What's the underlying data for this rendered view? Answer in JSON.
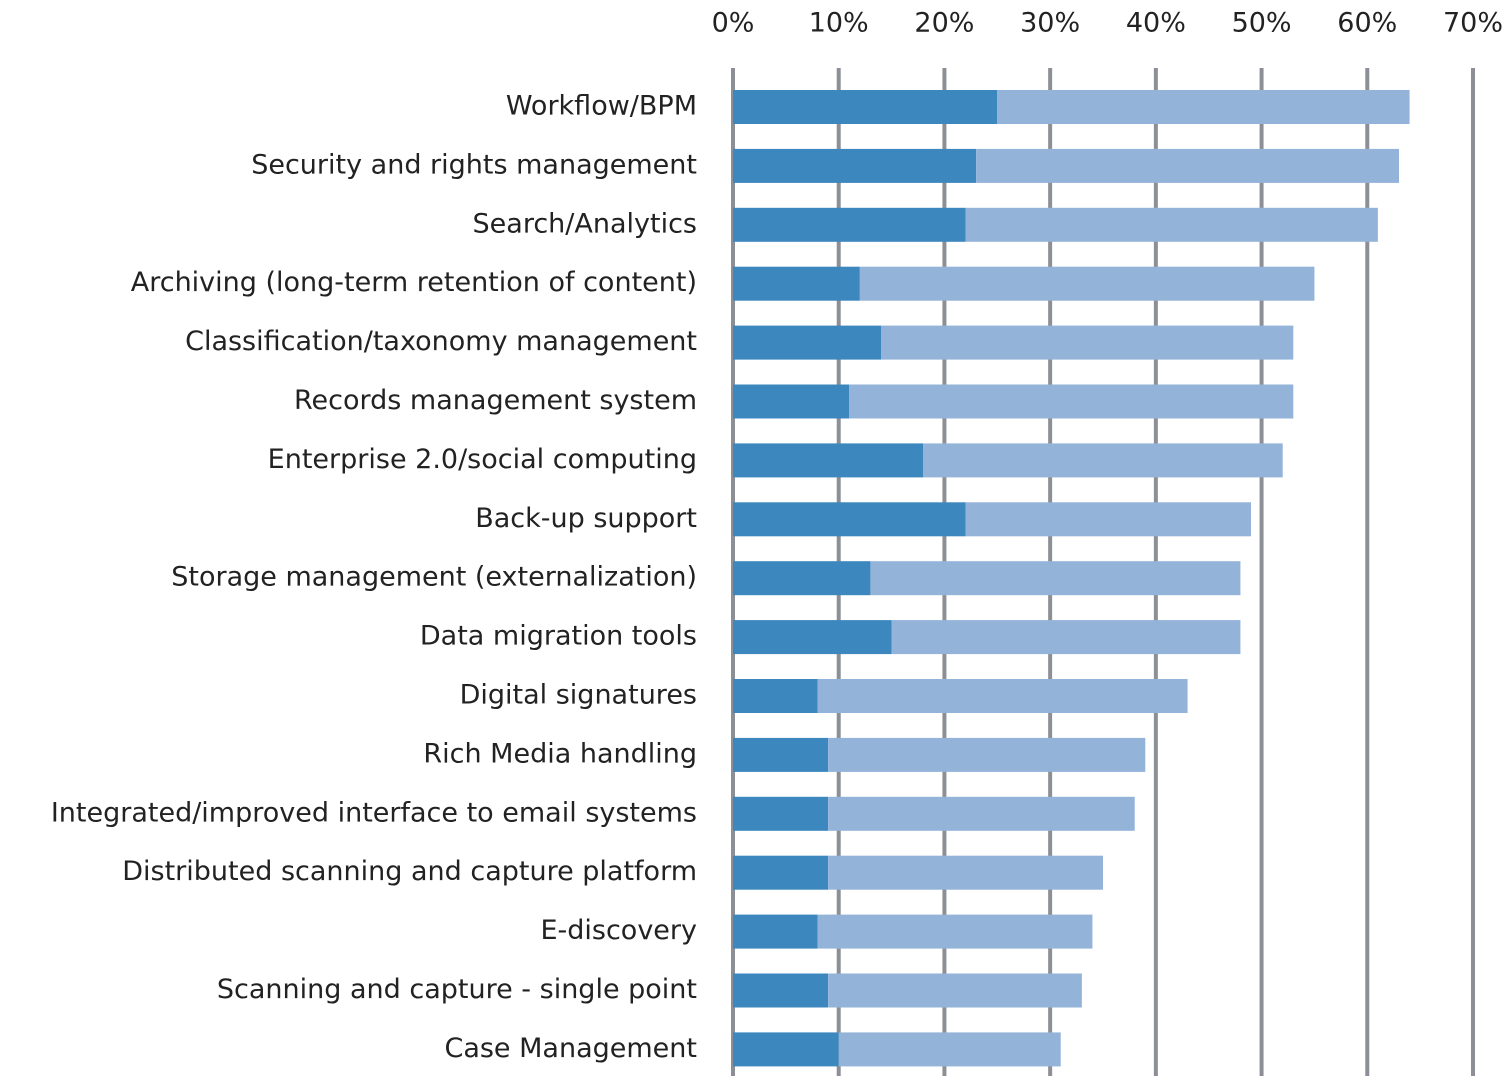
{
  "chart_data": {
    "type": "bar",
    "stacked": true,
    "categories": [
      "Workflow/BPM",
      "Security and rights management",
      "Search/Analytics",
      "Archiving (long-term retention of content)",
      "Classification/taxonomy management",
      "Records management system",
      "Enterprise 2.0/social computing",
      "Back-up support",
      "Storage management (externalization)",
      "Data migration tools",
      "Digital signatures",
      "Rich Media handling",
      "Integrated/improved interface to email systems",
      "Distributed scanning and capture platform",
      "E-discovery",
      "Scanning and capture - single point",
      "Case Management"
    ],
    "series": [
      {
        "color": "#3c87bd",
        "values": [
          25,
          23,
          22,
          12,
          14,
          11,
          18,
          22,
          13,
          15,
          8,
          9,
          9,
          9,
          8,
          9,
          10
        ]
      },
      {
        "color": "#93b3d9",
        "values": [
          39,
          40,
          39,
          43,
          39,
          42,
          34,
          27,
          35,
          33,
          35,
          30,
          29,
          26,
          26,
          24,
          21
        ]
      }
    ],
    "xlim": [
      0,
      70
    ],
    "xticks": [
      {
        "value": 0,
        "label": "0%"
      },
      {
        "value": 10,
        "label": "10%"
      },
      {
        "value": 20,
        "label": "20%"
      },
      {
        "value": 30,
        "label": "30%"
      },
      {
        "value": 40,
        "label": "40%"
      },
      {
        "value": 50,
        "label": "50%"
      },
      {
        "value": 60,
        "label": "60%"
      },
      {
        "value": 70,
        "label": "70%"
      }
    ],
    "grid": true,
    "grid_color": "#8c9096"
  }
}
